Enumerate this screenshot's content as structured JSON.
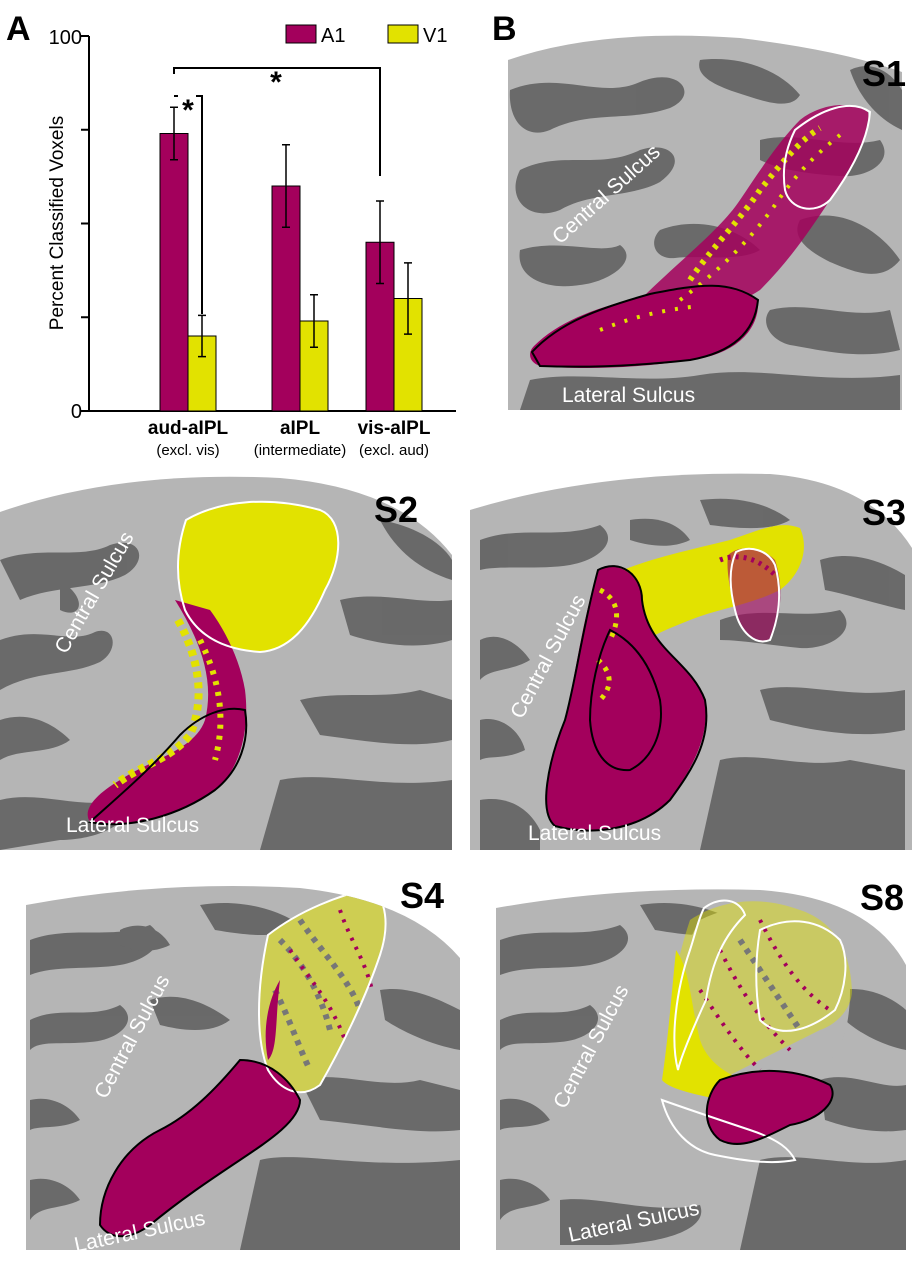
{
  "panels": {
    "a": "A",
    "b": "B"
  },
  "colors": {
    "a1": "#a3005c",
    "v1": "#e2e200",
    "surface_light": "#b5b5b5",
    "surface_dark": "#666666"
  },
  "chart_data": {
    "type": "bar",
    "categories": [
      "aud-aIPL",
      "aIPL",
      "vis-aIPL"
    ],
    "category_sublabels": [
      "(excl. vis)",
      "(intermediate)",
      "(excl. aud)"
    ],
    "series": [
      {
        "name": "A1",
        "values": [
          74,
          60,
          45
        ],
        "errors": [
          7,
          11,
          11
        ]
      },
      {
        "name": "V1",
        "values": [
          20,
          24,
          30
        ],
        "errors": [
          5.5,
          7,
          9.5
        ]
      }
    ],
    "ylabel": "Percent Classified Voxels",
    "ylim": [
      0,
      100
    ],
    "yticks_labeled": [
      "0",
      "100"
    ],
    "significance": [
      "*",
      "*"
    ]
  },
  "brains": [
    {
      "id": "S1",
      "central": "Central Sulcus",
      "lateral": "Lateral Sulcus"
    },
    {
      "id": "S2",
      "central": "Central Sulcus",
      "lateral": "Lateral Sulcus"
    },
    {
      "id": "S3",
      "central": "Central Sulcus",
      "lateral": "Lateral Sulcus"
    },
    {
      "id": "S4",
      "central": "Central Sulcus",
      "lateral": "Lateral Sulcus"
    },
    {
      "id": "S8",
      "central": "Central Sulcus",
      "lateral": "Lateral Sulcus"
    }
  ]
}
